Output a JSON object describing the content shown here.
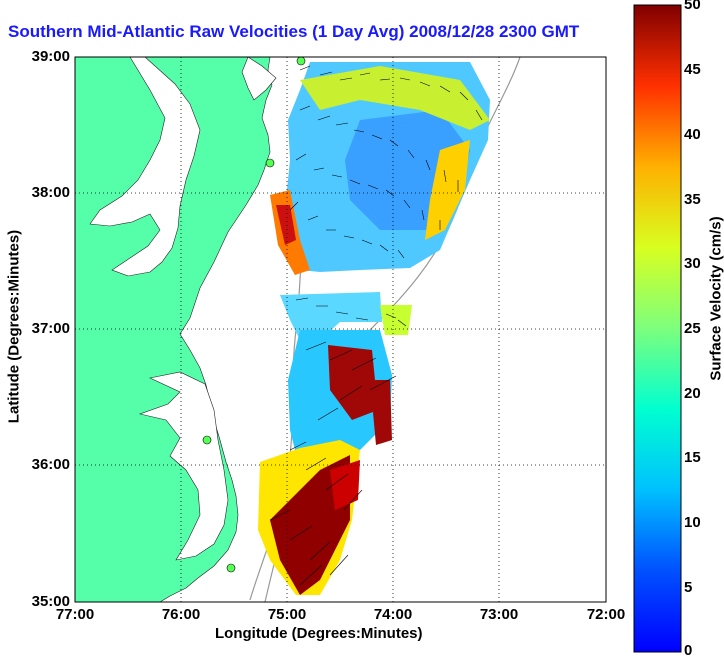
{
  "title": "Southern Mid-Atlantic Raw Velocities (1 Day Avg) 2008/12/28 2300 GMT",
  "xlabel": "Longitude (Degrees:Minutes)",
  "ylabel": "Latitude (Degrees:Minutes)",
  "x_ticks": [
    "77:00",
    "76:00",
    "75:00",
    "74:00",
    "73:00",
    "72:00"
  ],
  "y_ticks": [
    "39:00",
    "38:00",
    "37:00",
    "36:00",
    "35:00"
  ],
  "colorbar": {
    "label": "Surface Velocity (cm/s)",
    "ticks": [
      "50",
      "45",
      "40",
      "35",
      "30",
      "25",
      "20",
      "15",
      "10",
      "5",
      "0"
    ]
  },
  "colors": {
    "land": "#55ffaa",
    "title": "#1a1aff",
    "ocean": "#ffffff"
  }
}
